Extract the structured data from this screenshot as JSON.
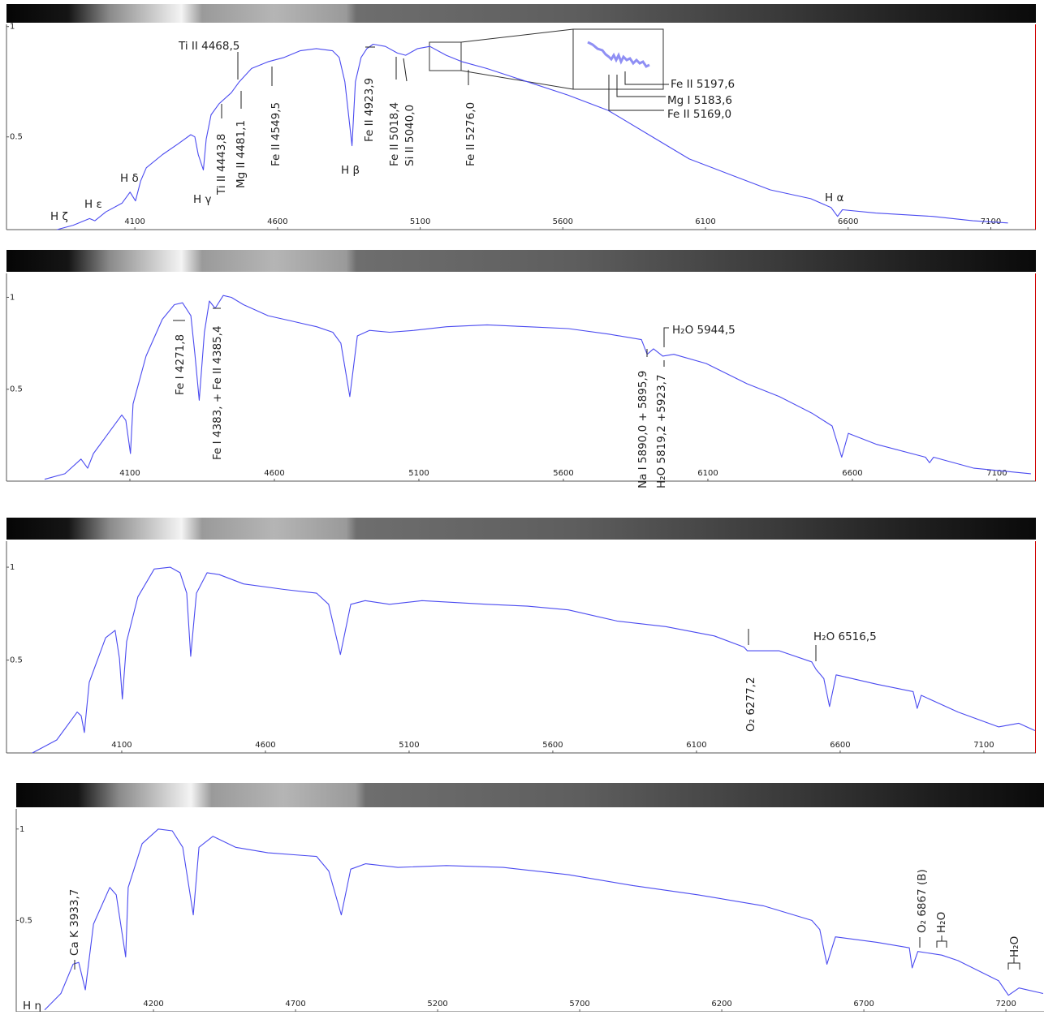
{
  "chart_data": [
    {
      "type": "line",
      "color": "#4b4bf0",
      "xlim": [
        3650,
        7258
      ],
      "ylim": [
        0.08,
        1.01
      ],
      "xticks": [
        4100,
        4600,
        5100,
        5600,
        6100,
        6600,
        7100
      ],
      "yticks": [
        0.5,
        1
      ],
      "x": [
        3827,
        3884,
        3941,
        3960,
        3998,
        4055,
        4083,
        4102,
        4120,
        4140,
        4197,
        4253,
        4296,
        4310,
        4322,
        4340,
        4350,
        4367,
        4395,
        4438,
        4466,
        4509,
        4566,
        4623,
        4679,
        4736,
        4793,
        4816,
        4836,
        4861,
        4873,
        4893,
        4913,
        4935,
        4978,
        5020,
        5049,
        5091,
        5134,
        5191,
        5248,
        5333,
        5475,
        5617,
        5759,
        5901,
        6043,
        6185,
        6327,
        6469,
        6540,
        6563,
        6580,
        6697,
        6895,
        7037,
        7160
      ],
      "values": [
        0.08,
        0.1,
        0.13,
        0.12,
        0.16,
        0.2,
        0.25,
        0.21,
        0.3,
        0.36,
        0.42,
        0.47,
        0.51,
        0.5,
        0.42,
        0.35,
        0.49,
        0.6,
        0.65,
        0.7,
        0.75,
        0.81,
        0.84,
        0.86,
        0.89,
        0.9,
        0.89,
        0.86,
        0.75,
        0.46,
        0.75,
        0.86,
        0.9,
        0.92,
        0.91,
        0.88,
        0.87,
        0.9,
        0.91,
        0.87,
        0.84,
        0.81,
        0.75,
        0.69,
        0.62,
        0.51,
        0.4,
        0.33,
        0.26,
        0.22,
        0.18,
        0.14,
        0.17,
        0.155,
        0.14,
        0.12,
        0.11
      ],
      "annotations": [
        "H ζ",
        "H ε",
        "H δ",
        "H γ",
        "Ti II 4443,8",
        "Ti II 4468,5",
        "Mg II 4481,1",
        "Fe II 4549,5",
        "H β",
        "Fe II 4923,9",
        "Fe II 5018,4",
        "Si II 5040,0",
        "Fe II 5276,0",
        "Fe II 5197,6",
        "Mg I 5183,6",
        "Fe II 5169,0",
        "H α"
      ]
    },
    {
      "type": "line",
      "color": "#4b4bf0",
      "xlim": [
        3673,
        7235
      ],
      "ylim": [
        0,
        1.13
      ],
      "xticks": [
        4100,
        4600,
        5100,
        5600,
        6100,
        6600,
        7100
      ],
      "yticks": [
        0.5,
        1
      ],
      "x": [
        3805,
        3875,
        3931,
        3954,
        3974,
        4016,
        4072,
        4086,
        4102,
        4111,
        4156,
        4212,
        4254,
        4282,
        4311,
        4325,
        4340,
        4358,
        4375,
        4395,
        4423,
        4451,
        4493,
        4578,
        4662,
        4746,
        4802,
        4830,
        4861,
        4887,
        4929,
        4999,
        5083,
        5196,
        5336,
        5476,
        5617,
        5757,
        5870,
        5890,
        5912,
        5944,
        5982,
        6094,
        6235,
        6347,
        6460,
        6530,
        6563,
        6586,
        6684,
        6853,
        6867,
        6881,
        7021,
        7218
      ],
      "values": [
        0.01,
        0.04,
        0.12,
        0.07,
        0.15,
        0.24,
        0.36,
        0.33,
        0.15,
        0.42,
        0.68,
        0.88,
        0.96,
        0.97,
        0.9,
        0.69,
        0.44,
        0.81,
        0.98,
        0.94,
        1.01,
        1.0,
        0.96,
        0.9,
        0.87,
        0.84,
        0.81,
        0.75,
        0.46,
        0.79,
        0.82,
        0.81,
        0.82,
        0.84,
        0.85,
        0.84,
        0.83,
        0.8,
        0.77,
        0.69,
        0.72,
        0.68,
        0.69,
        0.64,
        0.53,
        0.46,
        0.37,
        0.3,
        0.13,
        0.26,
        0.2,
        0.13,
        0.1,
        0.13,
        0.07,
        0.04
      ],
      "annotations": [
        "Fe I 4271,8",
        "Fe I 4383, + Fe II 4385,4",
        "Na I 5890,0 + 5895,9",
        "H₂O 5819,2 +5923,7",
        "H₂O  5944,5"
      ]
    },
    {
      "type": "line",
      "color": "#4b4bf0",
      "xlim": [
        3699,
        7281
      ],
      "ylim": [
        0,
        1.14
      ],
      "xticks": [
        4100,
        4600,
        5100,
        5600,
        6100,
        6600,
        7100
      ],
      "yticks": [
        0.5,
        1
      ],
      "x": [
        3789,
        3874,
        3945,
        3959,
        3970,
        3987,
        4044,
        4077,
        4092,
        4102,
        4117,
        4156,
        4213,
        4269,
        4303,
        4326,
        4340,
        4360,
        4397,
        4439,
        4524,
        4665,
        4778,
        4820,
        4861,
        4897,
        4947,
        5032,
        5145,
        5371,
        5512,
        5654,
        5823,
        5993,
        6162,
        6265,
        6277,
        6388,
        6501,
        6516,
        6543,
        6563,
        6586,
        6727,
        6854,
        6868,
        6882,
        7010,
        7151,
        7221,
        7278
      ],
      "values": [
        0.0,
        0.07,
        0.22,
        0.2,
        0.11,
        0.38,
        0.62,
        0.66,
        0.51,
        0.29,
        0.6,
        0.84,
        0.99,
        1.0,
        0.97,
        0.86,
        0.52,
        0.86,
        0.97,
        0.96,
        0.91,
        0.88,
        0.86,
        0.8,
        0.53,
        0.8,
        0.82,
        0.8,
        0.82,
        0.8,
        0.79,
        0.77,
        0.71,
        0.68,
        0.63,
        0.57,
        0.55,
        0.55,
        0.49,
        0.45,
        0.4,
        0.25,
        0.42,
        0.37,
        0.33,
        0.24,
        0.31,
        0.22,
        0.14,
        0.16,
        0.12
      ],
      "annotations": [
        "O₂ 6277,2",
        "H₂O 6516,5"
      ]
    },
    {
      "type": "line",
      "color": "#4b4bf0",
      "xlim": [
        3717,
        7334
      ],
      "ylim": [
        0,
        1.11
      ],
      "xticks": [
        4200,
        4700,
        5200,
        5700,
        6200,
        6700,
        7200
      ],
      "yticks": [
        0.5,
        1
      ],
      "x": [
        3817,
        3874,
        3917,
        3937,
        3960,
        3989,
        4046,
        4069,
        4102,
        4111,
        4160,
        4217,
        4266,
        4303,
        4340,
        4360,
        4409,
        4489,
        4603,
        4774,
        4817,
        4861,
        4894,
        4946,
        5060,
        5231,
        5431,
        5660,
        5889,
        6117,
        6346,
        6517,
        6545,
        6570,
        6600,
        6746,
        6860,
        6870,
        6890,
        6974,
        7031,
        7174,
        7209,
        7246,
        7331
      ],
      "values": [
        0.01,
        0.1,
        0.26,
        0.27,
        0.12,
        0.48,
        0.68,
        0.64,
        0.3,
        0.68,
        0.92,
        1.0,
        0.99,
        0.9,
        0.53,
        0.9,
        0.96,
        0.9,
        0.87,
        0.85,
        0.77,
        0.53,
        0.78,
        0.81,
        0.79,
        0.8,
        0.79,
        0.75,
        0.69,
        0.64,
        0.58,
        0.5,
        0.45,
        0.26,
        0.41,
        0.38,
        0.35,
        0.24,
        0.33,
        0.31,
        0.28,
        0.17,
        0.09,
        0.13,
        0.1
      ],
      "annotations": [
        "H η",
        "Ca K 3933,7",
        "O₂ 6867 (B)",
        "H₂O",
        "H₂O"
      ]
    }
  ]
}
